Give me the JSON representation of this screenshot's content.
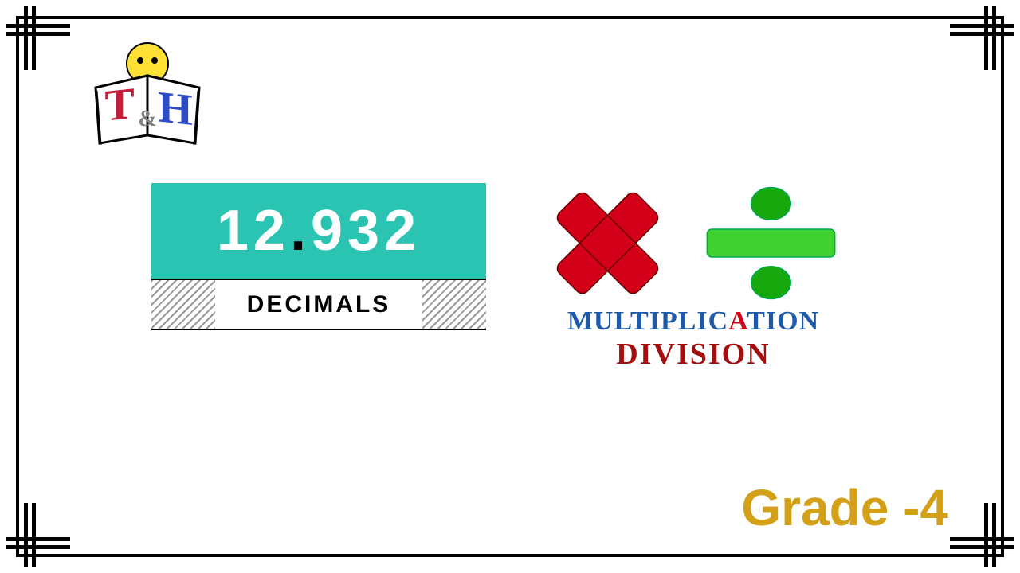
{
  "logo": {
    "letter_t": "T",
    "amp": "&",
    "letter_h": "H",
    "t_color": "#c41e3a",
    "h_color": "#2e4bc7",
    "amp_color": "#808080",
    "face_color": "#ffe135",
    "book_stroke": "#000000"
  },
  "decimal": {
    "int_part": "12",
    "dot": ".",
    "frac_part": "932",
    "label": "DECIMALS",
    "bg_color": "#2bc4b2"
  },
  "operations": {
    "cross_color": "#d4001a",
    "divide_color": "#17a80d",
    "divide_bar_color": "#3fd12f",
    "multiplication_label": "MULTIPLICATION",
    "multiplication_color": "#1e5aa8",
    "multiplication_a_color": "#d4001a",
    "division_label": "DIVISION",
    "division_color": "#a30e0e"
  },
  "grade": {
    "text": "Grade -4",
    "color": "#d4a017"
  },
  "frame": {
    "line_color": "#000000"
  }
}
